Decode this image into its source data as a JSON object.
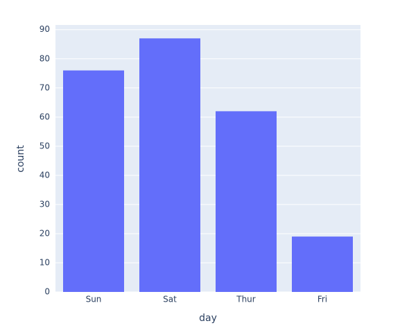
{
  "chart_data": {
    "type": "bar",
    "x_label": "day",
    "y_label": "count",
    "categories": [
      "Sun",
      "Sat",
      "Thur",
      "Fri"
    ],
    "values": [
      76,
      87,
      62,
      19
    ],
    "color": "#636efa",
    "ylim": [
      0,
      91.6
    ],
    "yticks": [
      0,
      10,
      20,
      30,
      40,
      50,
      60,
      70,
      80,
      90
    ],
    "grid": true
  }
}
